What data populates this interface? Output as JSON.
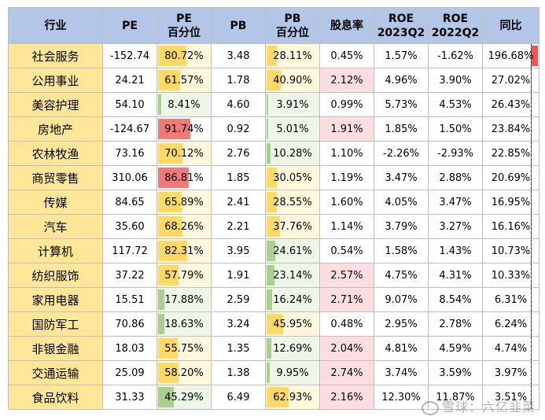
{
  "headers": [
    {
      "line1": "行业",
      "line2": ""
    },
    {
      "line1": "PE",
      "line2": ""
    },
    {
      "line1": "PE",
      "line2": "百分位"
    },
    {
      "line1": "PB",
      "line2": ""
    },
    {
      "line1": "PB",
      "line2": "百分位"
    },
    {
      "line1": "股息率",
      "line2": ""
    },
    {
      "line1": "ROE",
      "line2": "2023Q2"
    },
    {
      "line1": "ROE",
      "line2": "2022Q2"
    },
    {
      "line1": "同比",
      "line2": ""
    }
  ],
  "rows": [
    {
      "name": "社会服务",
      "pe": "-152.74",
      "pe_pct": "80.72%",
      "pe_pct_value": 80.72,
      "pb": "3.48",
      "pb_pct": "28.11%",
      "pb_pct_value": 28.11,
      "div": "0.45%",
      "div_highlight": false,
      "roe23": "1.57%",
      "roe22": "-1.62%",
      "yoy": "196.68%",
      "yoy_value": 196.68
    },
    {
      "name": "公用事业",
      "pe": "24.21",
      "pe_pct": "61.57%",
      "pe_pct_value": 61.57,
      "pb": "1.78",
      "pb_pct": "40.90%",
      "pb_pct_value": 40.9,
      "div": "2.12%",
      "div_highlight": true,
      "roe23": "4.96%",
      "roe22": "3.90%",
      "yoy": "27.02%",
      "yoy_value": 27.02
    },
    {
      "name": "美容护理",
      "pe": "54.10",
      "pe_pct": "8.41%",
      "pe_pct_value": 8.41,
      "pb": "4.60",
      "pb_pct": "3.91%",
      "pb_pct_value": 3.91,
      "div": "0.99%",
      "div_highlight": false,
      "roe23": "5.73%",
      "roe22": "4.53%",
      "yoy": "26.43%",
      "yoy_value": 26.43
    },
    {
      "name": "房地产",
      "pe": "-124.67",
      "pe_pct": "91.74%",
      "pe_pct_value": 91.74,
      "pb": "0.92",
      "pb_pct": "5.01%",
      "pb_pct_value": 5.01,
      "div": "1.91%",
      "div_highlight": true,
      "roe23": "1.85%",
      "roe22": "1.50%",
      "yoy": "23.84%",
      "yoy_value": 23.84
    },
    {
      "name": "农林牧渔",
      "pe": "73.16",
      "pe_pct": "70.12%",
      "pe_pct_value": 70.12,
      "pb": "2.76",
      "pb_pct": "10.28%",
      "pb_pct_value": 10.28,
      "div": "1.10%",
      "div_highlight": false,
      "roe23": "-2.26%",
      "roe22": "-2.93%",
      "yoy": "22.85%",
      "yoy_value": 22.85
    },
    {
      "name": "商贸零售",
      "pe": "310.06",
      "pe_pct": "86.81%",
      "pe_pct_value": 86.81,
      "pb": "1.85",
      "pb_pct": "30.05%",
      "pb_pct_value": 30.05,
      "div": "1.19%",
      "div_highlight": false,
      "roe23": "3.47%",
      "roe22": "2.88%",
      "yoy": "20.69%",
      "yoy_value": 20.69
    },
    {
      "name": "传媒",
      "pe": "84.65",
      "pe_pct": "65.89%",
      "pe_pct_value": 65.89,
      "pb": "2.41",
      "pb_pct": "28.55%",
      "pb_pct_value": 28.55,
      "div": "1.60%",
      "div_highlight": false,
      "roe23": "4.05%",
      "roe22": "3.47%",
      "yoy": "16.95%",
      "yoy_value": 16.95
    },
    {
      "name": "汽车",
      "pe": "35.60",
      "pe_pct": "68.26%",
      "pe_pct_value": 68.26,
      "pb": "2.21",
      "pb_pct": "37.76%",
      "pb_pct_value": 37.76,
      "div": "1.14%",
      "div_highlight": false,
      "roe23": "3.79%",
      "roe22": "3.27%",
      "yoy": "16.16%",
      "yoy_value": 16.16
    },
    {
      "name": "计算机",
      "pe": "117.72",
      "pe_pct": "82.31%",
      "pe_pct_value": 82.31,
      "pb": "3.95",
      "pb_pct": "24.61%",
      "pb_pct_value": 24.61,
      "div": "0.54%",
      "div_highlight": false,
      "roe23": "1.58%",
      "roe22": "1.43%",
      "yoy": "10.73%",
      "yoy_value": 10.73
    },
    {
      "name": "纺织服饰",
      "pe": "37.22",
      "pe_pct": "57.79%",
      "pe_pct_value": 57.79,
      "pb": "1.91",
      "pb_pct": "23.14%",
      "pb_pct_value": 23.14,
      "div": "2.57%",
      "div_highlight": true,
      "roe23": "4.75%",
      "roe22": "4.31%",
      "yoy": "10.33%",
      "yoy_value": 10.33
    },
    {
      "name": "家用电器",
      "pe": "15.51",
      "pe_pct": "17.88%",
      "pe_pct_value": 17.88,
      "pb": "2.59",
      "pb_pct": "16.24%",
      "pb_pct_value": 16.24,
      "div": "2.71%",
      "div_highlight": true,
      "roe23": "9.07%",
      "roe22": "8.54%",
      "yoy": "6.31%",
      "yoy_value": 6.31
    },
    {
      "name": "国防军工",
      "pe": "70.86",
      "pe_pct": "18.63%",
      "pe_pct_value": 18.63,
      "pb": "3.24",
      "pb_pct": "45.95%",
      "pb_pct_value": 45.95,
      "div": "0.48%",
      "div_highlight": false,
      "roe23": "2.95%",
      "roe22": "2.78%",
      "yoy": "6.24%",
      "yoy_value": 6.24
    },
    {
      "name": "非银金融",
      "pe": "18.03",
      "pe_pct": "55.75%",
      "pe_pct_value": 55.75,
      "pb": "1.35",
      "pb_pct": "12.69%",
      "pb_pct_value": 12.69,
      "div": "2.04%",
      "div_highlight": true,
      "roe23": "4.81%",
      "roe22": "4.59%",
      "yoy": "4.74%",
      "yoy_value": 4.74
    },
    {
      "name": "交通运输",
      "pe": "25.09",
      "pe_pct": "58.20%",
      "pe_pct_value": 58.2,
      "pb": "1.38",
      "pb_pct": "9.95%",
      "pb_pct_value": 9.95,
      "div": "2.74%",
      "div_highlight": true,
      "roe23": "3.74%",
      "roe22": "3.59%",
      "yoy": "3.97%",
      "yoy_value": 3.97
    },
    {
      "name": "食品饮料",
      "pe": "31.33",
      "pe_pct": "45.29%",
      "pe_pct_value": 45.29,
      "pb": "6.49",
      "pb_pct": "62.93%",
      "pb_pct_value": 62.93,
      "div": "2.16%",
      "div_highlight": true,
      "roe23": "12.30%",
      "roe22": "11.87%",
      "yoy": "3.51%",
      "yoy_value": 3.51
    }
  ],
  "watermark": "雪球：六亿韭菜",
  "colors": {
    "header_bg": "#b4c6e7",
    "name_bg": "#ffe699",
    "dividend_highlight": "#ffdde1",
    "yoy_bar": "#ee5555"
  }
}
